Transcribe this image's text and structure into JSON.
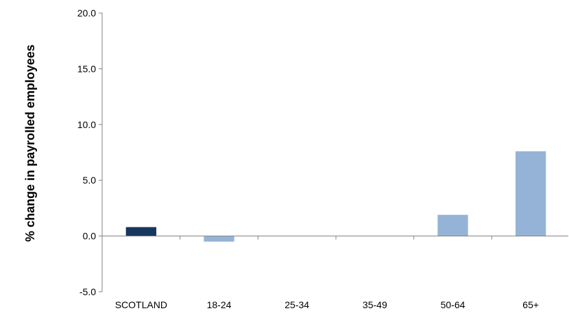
{
  "chart_data": {
    "type": "bar",
    "title": "",
    "xlabel": "",
    "ylabel": "% change in payrolled employees",
    "categories": [
      "SCOTLAND",
      "18-24",
      "25-34",
      "35-49",
      "50-64",
      "65+"
    ],
    "values": [
      0.8,
      -0.5,
      0.0,
      0.0,
      1.9,
      7.6
    ],
    "bar_colors": [
      "#17375E",
      "#95B3D7",
      "#95B3D7",
      "#95B3D7",
      "#95B3D7",
      "#95B3D7"
    ],
    "ylim": [
      -5.0,
      20.0
    ],
    "yticks": [
      "-5.0",
      "0.0",
      "5.0",
      "10.0",
      "15.0",
      "20.0"
    ],
    "grid": false,
    "legend": "none"
  }
}
